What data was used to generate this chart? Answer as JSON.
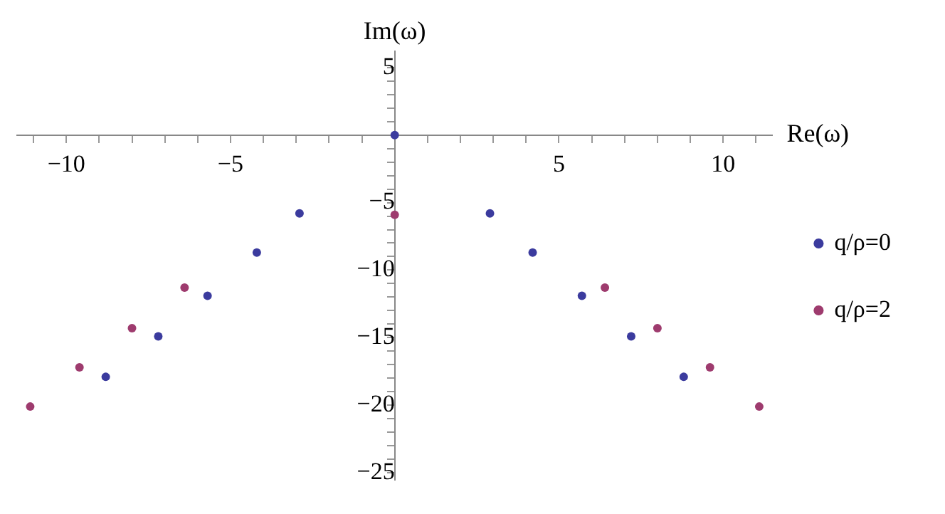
{
  "chart_data": {
    "type": "scatter",
    "xlabel": "Re(ω)",
    "ylabel": "Im(ω)",
    "xlim": [
      -11.5,
      11.5
    ],
    "ylim": [
      -25.5,
      6.2
    ],
    "xticks": [
      {
        "value": -11,
        "label": null
      },
      {
        "value": -10,
        "label": "−10"
      },
      {
        "value": -9,
        "label": null
      },
      {
        "value": -8,
        "label": null
      },
      {
        "value": -7,
        "label": null
      },
      {
        "value": -6,
        "label": null
      },
      {
        "value": -5,
        "label": "−5"
      },
      {
        "value": -4,
        "label": null
      },
      {
        "value": -3,
        "label": null
      },
      {
        "value": -2,
        "label": null
      },
      {
        "value": -1,
        "label": null
      },
      {
        "value": 1,
        "label": null
      },
      {
        "value": 2,
        "label": null
      },
      {
        "value": 3,
        "label": null
      },
      {
        "value": 4,
        "label": null
      },
      5,
      {
        "value": 6,
        "label": null
      },
      {
        "value": 7,
        "label": null
      },
      {
        "value": 8,
        "label": null
      },
      {
        "value": 9,
        "label": null
      },
      10,
      {
        "value": 11,
        "label": null
      }
    ],
    "yticks": [
      {
        "value": -25,
        "label": "−25"
      },
      {
        "value": -24,
        "label": null
      },
      {
        "value": -23,
        "label": null
      },
      {
        "value": -22,
        "label": null
      },
      {
        "value": -21,
        "label": null
      },
      {
        "value": -20,
        "label": "−20"
      },
      {
        "value": -19,
        "label": null
      },
      {
        "value": -18,
        "label": null
      },
      {
        "value": -17,
        "label": null
      },
      {
        "value": -16,
        "label": null
      },
      {
        "value": -15,
        "label": "−15"
      },
      {
        "value": -14,
        "label": null
      },
      {
        "value": -13,
        "label": null
      },
      {
        "value": -12,
        "label": null
      },
      {
        "value": -11,
        "label": null
      },
      {
        "value": -10,
        "label": "−10"
      },
      {
        "value": -9,
        "label": null
      },
      {
        "value": -8,
        "label": null
      },
      {
        "value": -7,
        "label": null
      },
      {
        "value": -6,
        "label": null
      },
      {
        "value": -5,
        "label": "−5"
      },
      {
        "value": -4,
        "label": null
      },
      {
        "value": -3,
        "label": null
      },
      {
        "value": -2,
        "label": null
      },
      {
        "value": -1,
        "label": null
      },
      {
        "value": 1,
        "label": null
      },
      {
        "value": 2,
        "label": null
      },
      {
        "value": 3,
        "label": null
      },
      {
        "value": 4,
        "label": null
      },
      5
    ],
    "grid": false,
    "legend": "right",
    "marker": "circle",
    "series": [
      {
        "name": "q/ρ=0",
        "color": "#3b3b9e",
        "x": [
          0,
          -2.9,
          2.9,
          -4.2,
          4.2,
          -5.7,
          5.7,
          -7.2,
          7.2,
          -8.8,
          8.8
        ],
        "values": [
          0,
          -5.8,
          -5.8,
          -8.7,
          -8.7,
          -11.9,
          -11.9,
          -14.9,
          -14.9,
          -17.9,
          -17.9
        ]
      },
      {
        "name": "q/ρ=2",
        "color": "#9e3b6e",
        "x": [
          0,
          -6.4,
          6.4,
          -8.0,
          8.0,
          -9.6,
          9.6,
          -11.1,
          11.1
        ],
        "values": [
          -5.9,
          -11.3,
          -11.3,
          -14.3,
          -14.3,
          -17.2,
          -17.2,
          -20.1,
          -20.1
        ]
      }
    ]
  }
}
